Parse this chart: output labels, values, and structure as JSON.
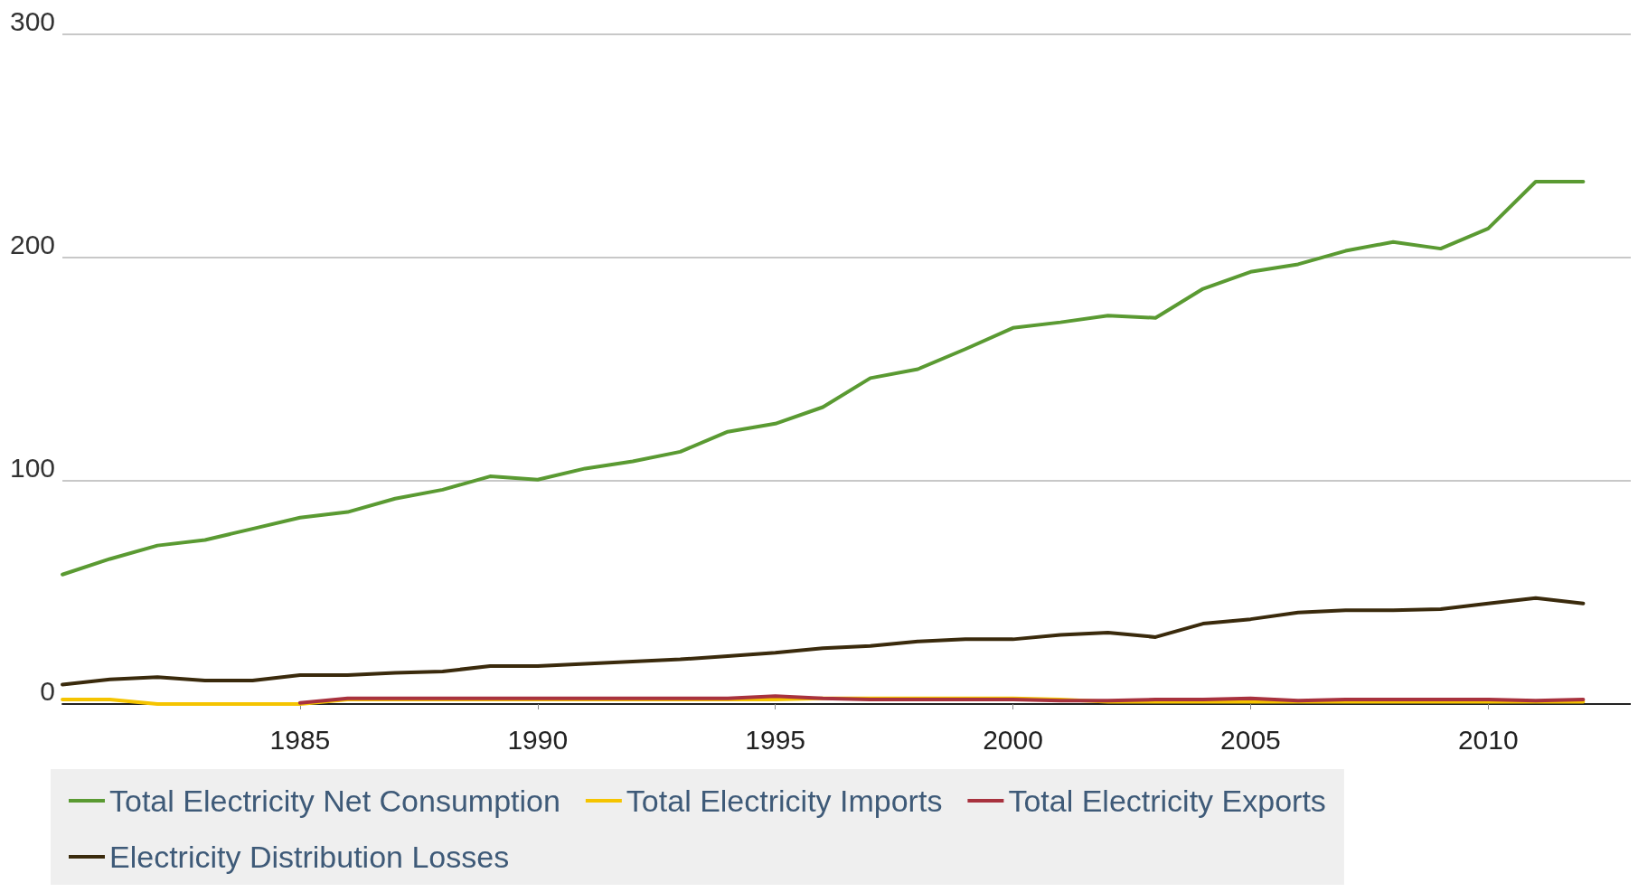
{
  "chart_data": {
    "type": "line",
    "x": [
      1980,
      1981,
      1982,
      1983,
      1984,
      1985,
      1986,
      1987,
      1988,
      1989,
      1990,
      1991,
      1992,
      1993,
      1994,
      1995,
      1996,
      1997,
      1998,
      1999,
      2000,
      2001,
      2002,
      2003,
      2004,
      2005,
      2006,
      2007,
      2008,
      2009,
      2010,
      2011,
      2012
    ],
    "series": [
      {
        "name": "Total Electricity Net Consumption",
        "color": "#5a9a32",
        "values": [
          58,
          65,
          71,
          73.5,
          78.5,
          83.5,
          86,
          92,
          96,
          102,
          100.5,
          105.5,
          108.7,
          113,
          122,
          125.6,
          133,
          146,
          150,
          159,
          168.5,
          171,
          174,
          173,
          186,
          193.6,
          197,
          203,
          207,
          204,
          213,
          234,
          234
        ]
      },
      {
        "name": "Total Electricity Imports",
        "color": "#f5c400",
        "values": [
          2,
          2,
          0,
          0,
          0,
          0,
          2,
          2,
          2,
          2,
          2,
          2,
          2,
          2,
          2,
          2,
          2.5,
          2.5,
          2.5,
          2.5,
          2.5,
          2,
          1,
          1,
          1,
          1,
          1,
          1,
          1,
          1,
          1,
          1,
          1
        ]
      },
      {
        "name": "Total Electricity Exports",
        "color": "#a8323e",
        "values": [
          null,
          null,
          null,
          null,
          null,
          0.5,
          2.5,
          2.5,
          2.5,
          2.5,
          2.5,
          2.5,
          2.5,
          2.5,
          2.5,
          3.5,
          2.5,
          2,
          2,
          2,
          2,
          1.5,
          1.5,
          2,
          2,
          2.5,
          1.5,
          2,
          2,
          2,
          2,
          1.5,
          2
        ]
      },
      {
        "name": "Electricity Distribution Losses",
        "color": "#3a2a0c",
        "values": [
          8.7,
          11,
          12,
          10.5,
          10.5,
          13,
          13,
          14,
          14.6,
          17,
          17,
          18,
          19,
          20,
          21.5,
          23,
          25,
          26,
          28,
          29,
          29,
          31,
          32,
          30,
          36,
          38,
          41,
          42,
          42,
          42.5,
          45,
          47.5,
          45
        ]
      }
    ],
    "xlim": [
      1980,
      2013
    ],
    "xticks": [
      1985,
      1990,
      1995,
      2000,
      2005,
      2010
    ],
    "ylim": [
      0,
      300
    ],
    "yticks": [
      0,
      100,
      200,
      300
    ],
    "grid": "y",
    "legend": "bottom",
    "marker": "none",
    "line_style": "solid"
  }
}
